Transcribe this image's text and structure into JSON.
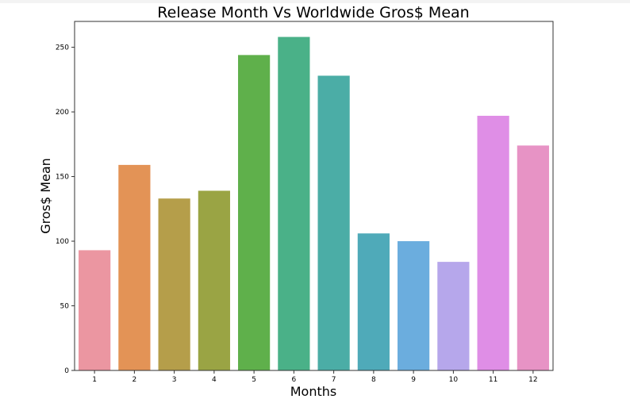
{
  "chart_data": {
    "type": "bar",
    "title": "Release Month Vs Worldwide Gros$ Mean",
    "xlabel": "Months",
    "ylabel": "Gros$ Mean",
    "categories": [
      "1",
      "2",
      "3",
      "4",
      "5",
      "6",
      "7",
      "8",
      "9",
      "10",
      "11",
      "12"
    ],
    "values": [
      93,
      159,
      133,
      139,
      244,
      258,
      228,
      106,
      100,
      84,
      197,
      174
    ],
    "colors": [
      "#eb96a1",
      "#e39356",
      "#b59e4a",
      "#9aa444",
      "#5fb04b",
      "#4ab188",
      "#4bada6",
      "#4faab9",
      "#6badde",
      "#b6a7eb",
      "#df8ee6",
      "#e793c5"
    ],
    "yticks": [
      0,
      50,
      100,
      150,
      200,
      250
    ],
    "ylim": [
      0,
      270
    ],
    "grid": false,
    "legend": "none"
  }
}
